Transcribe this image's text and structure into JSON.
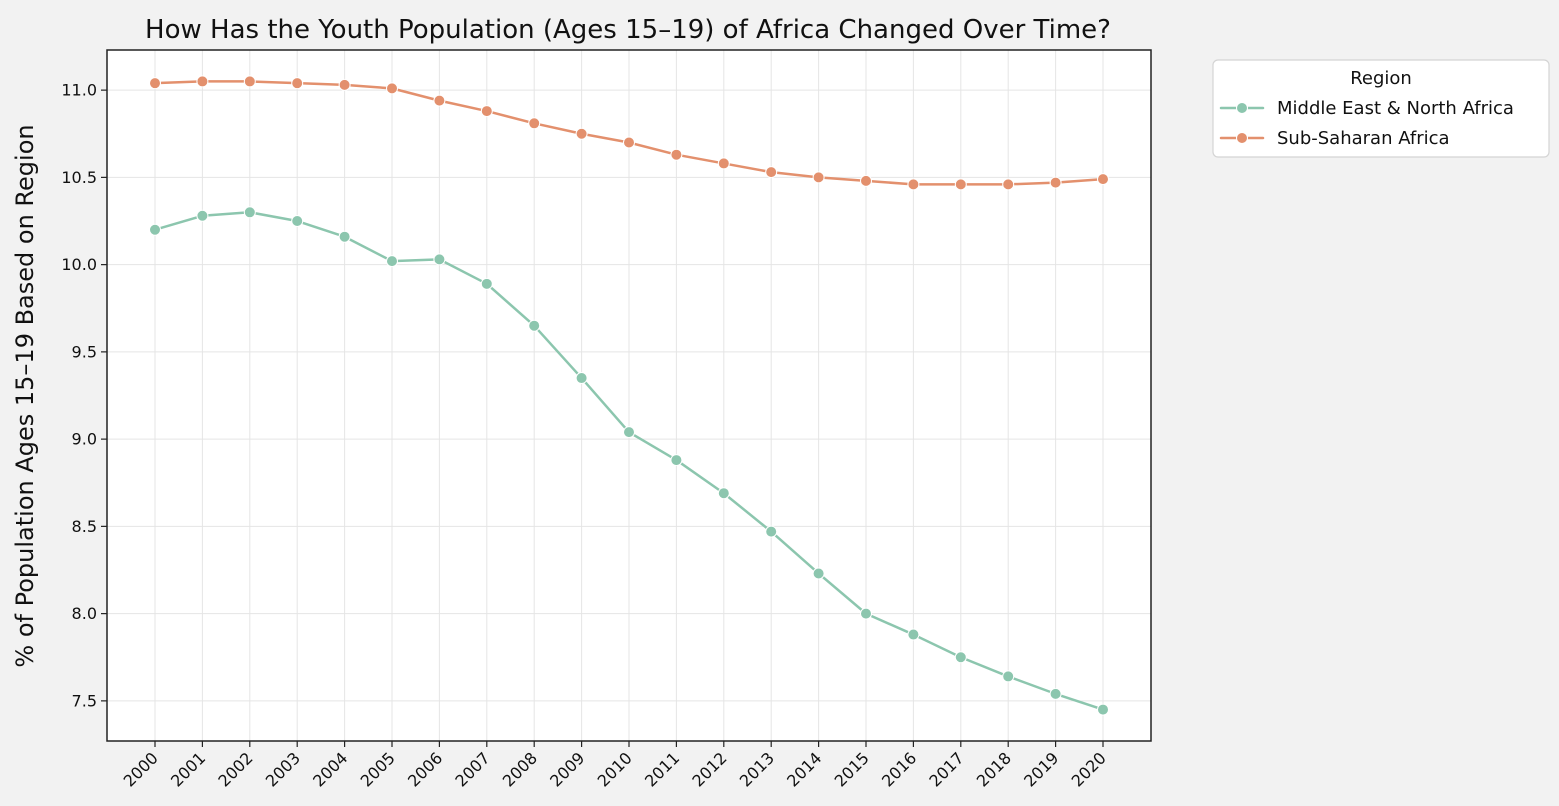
{
  "chart_data": {
    "type": "line",
    "title": "How Has the Youth Population (Ages 15–19) of Africa Changed Over Time?",
    "xlabel": "",
    "ylabel": "% of Population Ages 15–19 Based on Region",
    "x": [
      "2000",
      "2001",
      "2002",
      "2003",
      "2004",
      "2005",
      "2006",
      "2007",
      "2008",
      "2009",
      "2010",
      "2011",
      "2012",
      "2013",
      "2014",
      "2015",
      "2016",
      "2017",
      "2018",
      "2019",
      "2020"
    ],
    "ylim": [
      7.27,
      11.23
    ],
    "yticks": [
      7.5,
      8.0,
      8.5,
      9.0,
      9.5,
      10.0,
      10.5,
      11.0
    ],
    "ytick_labels": [
      "7.5",
      "8.0",
      "8.5",
      "9.0",
      "9.5",
      "10.0",
      "10.5",
      "11.0"
    ],
    "grid": true,
    "markers": "circle",
    "legend": {
      "title": "Region",
      "placement": "outside-top-right"
    },
    "series": [
      {
        "name": "Middle East & North Africa",
        "color": "#8cc6ae",
        "values": [
          10.2,
          10.28,
          10.3,
          10.25,
          10.16,
          10.02,
          10.03,
          9.89,
          9.65,
          9.35,
          9.04,
          8.88,
          8.69,
          8.47,
          8.23,
          8.0,
          7.88,
          7.75,
          7.64,
          7.54,
          7.45
        ]
      },
      {
        "name": "Sub-Saharan Africa",
        "color": "#e3906d",
        "values": [
          11.04,
          11.05,
          11.05,
          11.04,
          11.03,
          11.01,
          10.94,
          10.88,
          10.81,
          10.75,
          10.7,
          10.63,
          10.58,
          10.53,
          10.5,
          10.48,
          10.46,
          10.46,
          10.46,
          10.47,
          10.49
        ]
      }
    ]
  }
}
